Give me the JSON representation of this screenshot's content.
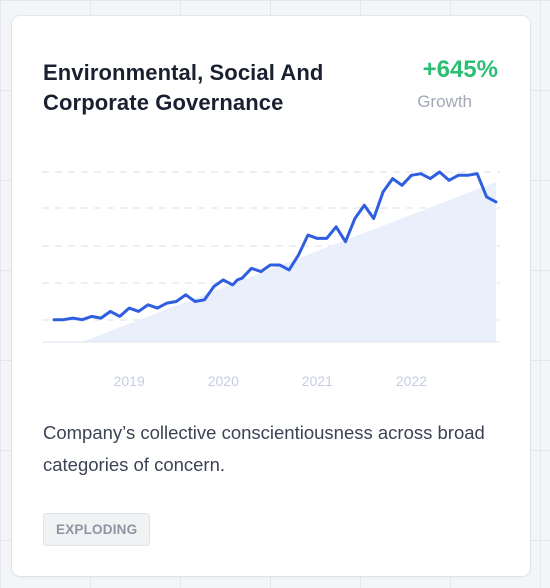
{
  "card": {
    "title": "Environmental, Social And Corporate Governance",
    "growth_value": "+645%",
    "growth_label": "Growth",
    "description": "Company’s collective conscientiousness across broad categories of concern.",
    "badge": "EXPLODING"
  },
  "colors": {
    "line": "#2f5fe0",
    "growth": "#2cbe72",
    "area_fill": "#eaf0fb"
  },
  "chart_data": {
    "type": "area",
    "x_tick_labels": [
      "2019",
      "2020",
      "2021",
      "2022"
    ],
    "x_ticks": [
      2019,
      2020,
      2021,
      2022
    ],
    "xlim": [
      2018.2,
      2022.9
    ],
    "ylim": [
      0,
      100
    ],
    "grid": true,
    "x": [
      2018.2,
      2018.3,
      2018.4,
      2018.5,
      2018.6,
      2018.7,
      2018.8,
      2018.9,
      2019.0,
      2019.1,
      2019.2,
      2019.3,
      2019.4,
      2019.5,
      2019.6,
      2019.7,
      2019.8,
      2019.9,
      2020.0,
      2020.1,
      2020.15,
      2020.2,
      2020.3,
      2020.4,
      2020.5,
      2020.6,
      2020.7,
      2020.8,
      2020.9,
      2021.0,
      2021.1,
      2021.2,
      2021.3,
      2021.4,
      2021.5,
      2021.6,
      2021.7,
      2021.8,
      2021.9,
      2022.0,
      2022.1,
      2022.2,
      2022.3,
      2022.4,
      2022.5,
      2022.6,
      2022.7,
      2022.8,
      2022.9
    ],
    "values": [
      11,
      11,
      12,
      11,
      13,
      12,
      16,
      13,
      18,
      16,
      20,
      18,
      21,
      22,
      26,
      22,
      23,
      31,
      35,
      32,
      35,
      36,
      42,
      40,
      44,
      44,
      41,
      50,
      62,
      60,
      60,
      67,
      58,
      72,
      80,
      72,
      88,
      96,
      92,
      98,
      99,
      96,
      100,
      95,
      98,
      98,
      99,
      85,
      82
    ],
    "series": [
      {
        "values": [
          11,
          11,
          12,
          11,
          13,
          12,
          16,
          13,
          18,
          16,
          20,
          18,
          21,
          22,
          26,
          22,
          23,
          31,
          35,
          32,
          35,
          36,
          42,
          40,
          44,
          44,
          41,
          50,
          62,
          60,
          60,
          67,
          58,
          72,
          80,
          72,
          88,
          96,
          92,
          98,
          99,
          96,
          100,
          95,
          98,
          98,
          99,
          85,
          82
        ]
      }
    ]
  }
}
